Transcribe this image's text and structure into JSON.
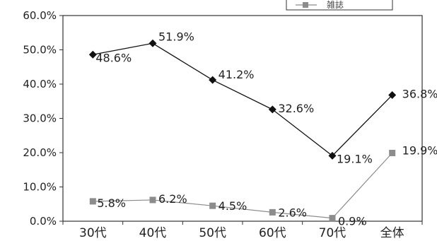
{
  "chart_data": {
    "type": "line",
    "title": "",
    "xlabel": "",
    "ylabel": "",
    "categories": [
      "30代",
      "40代",
      "50代",
      "60代",
      "70代",
      "全体"
    ],
    "ylim": [
      0,
      60
    ],
    "yticks": [
      "0.0%",
      "10.0%",
      "20.0%",
      "30.0%",
      "40.0%",
      "50.0%",
      "60.0%"
    ],
    "grid": false,
    "legend_position": "top-right",
    "series": [
      {
        "name": "",
        "marker": "diamond",
        "color": "#111111",
        "values": [
          48.6,
          51.9,
          41.2,
          32.6,
          19.1,
          36.8
        ],
        "labels": [
          "48.6%",
          "51.9%",
          "41.2%",
          "32.6%",
          "19.1%",
          "36.8%"
        ]
      },
      {
        "name": "雑誌",
        "marker": "square",
        "color": "#8c8c8c",
        "values": [
          5.8,
          6.2,
          4.5,
          2.6,
          0.9,
          19.9
        ],
        "labels": [
          "5.8%",
          "6.2%",
          "4.5%",
          "2.6%",
          "0.9%",
          "19.9%"
        ]
      }
    ]
  }
}
